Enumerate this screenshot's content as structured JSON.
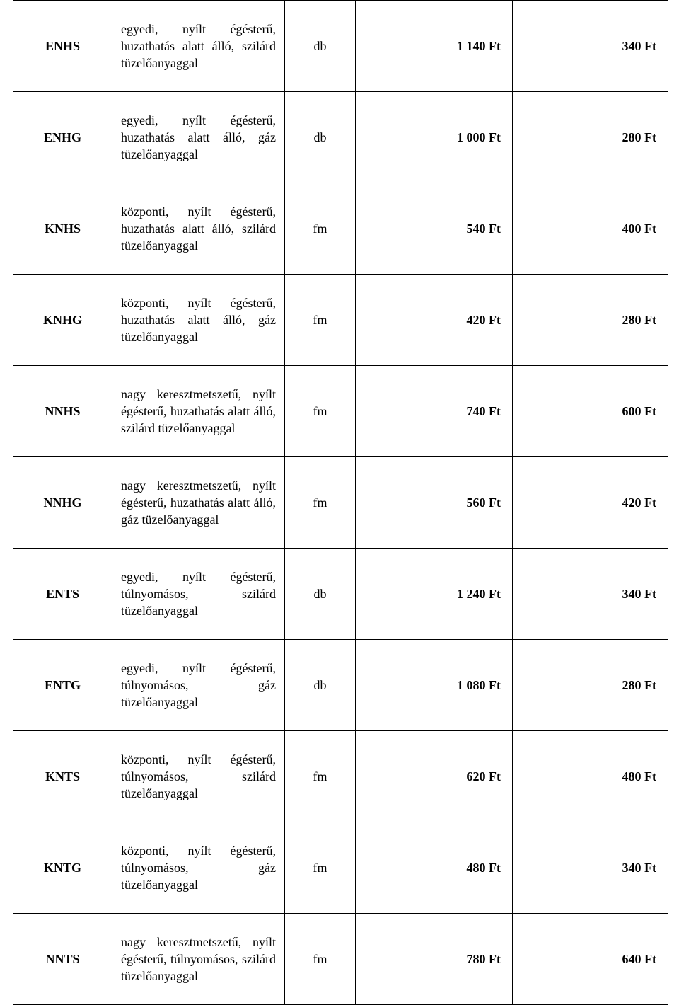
{
  "rows": [
    {
      "code": "ENHS",
      "desc": "egyedi, nyílt égésterű, huzathatás alatt álló, szilárd tüzelőanyaggal",
      "unit": "db",
      "p1": "1 140 Ft",
      "p2": "340 Ft"
    },
    {
      "code": "ENHG",
      "desc": "egyedi, nyílt égésterű, huzathatás alatt álló, gáz tüzelőanyaggal",
      "unit": "db",
      "p1": "1 000 Ft",
      "p2": "280 Ft"
    },
    {
      "code": "KNHS",
      "desc": "központi, nyílt égésterű, huzathatás alatt álló, szilárd tüzelőanyaggal",
      "unit": "fm",
      "p1": "540 Ft",
      "p2": "400 Ft"
    },
    {
      "code": "KNHG",
      "desc": "központi, nyílt égésterű, huzathatás alatt álló, gáz tüzelőanyaggal",
      "unit": "fm",
      "p1": "420 Ft",
      "p2": "280 Ft"
    },
    {
      "code": "NNHS",
      "desc": "nagy keresztmetszetű, nyílt égésterű, huzathatás alatt álló, szilárd tüzelőanyaggal",
      "unit": "fm",
      "p1": "740 Ft",
      "p2": "600 Ft"
    },
    {
      "code": "NNHG",
      "desc": "nagy keresztmetszetű, nyílt égésterű, huzathatás alatt álló, gáz tüzelőanyaggal",
      "unit": "fm",
      "p1": "560 Ft",
      "p2": "420 Ft"
    },
    {
      "code": "ENTS",
      "desc": "egyedi, nyílt égésterű, túlnyomásos, szilárd tüzelőanyaggal",
      "unit": "db",
      "p1": "1 240 Ft",
      "p2": "340 Ft"
    },
    {
      "code": "ENTG",
      "desc": "egyedi, nyílt égésterű, túlnyomásos, gáz tüzelőanyaggal",
      "unit": "db",
      "p1": "1 080 Ft",
      "p2": "280 Ft"
    },
    {
      "code": "KNTS",
      "desc": "központi, nyílt égésterű, túlnyomásos, szilárd tüzelőanyaggal",
      "unit": "fm",
      "p1": "620 Ft",
      "p2": "480 Ft"
    },
    {
      "code": "KNTG",
      "desc": "központi, nyílt égésterű, túlnyomásos, gáz tüzelőanyaggal",
      "unit": "fm",
      "p1": "480 Ft",
      "p2": "340 Ft"
    },
    {
      "code": "NNTS",
      "desc": "nagy keresztmetszetű, nyílt égésterű, túlnyomásos, szilárd tüzelőanyaggal",
      "unit": "fm",
      "p1": "780 Ft",
      "p2": "640 Ft"
    }
  ]
}
